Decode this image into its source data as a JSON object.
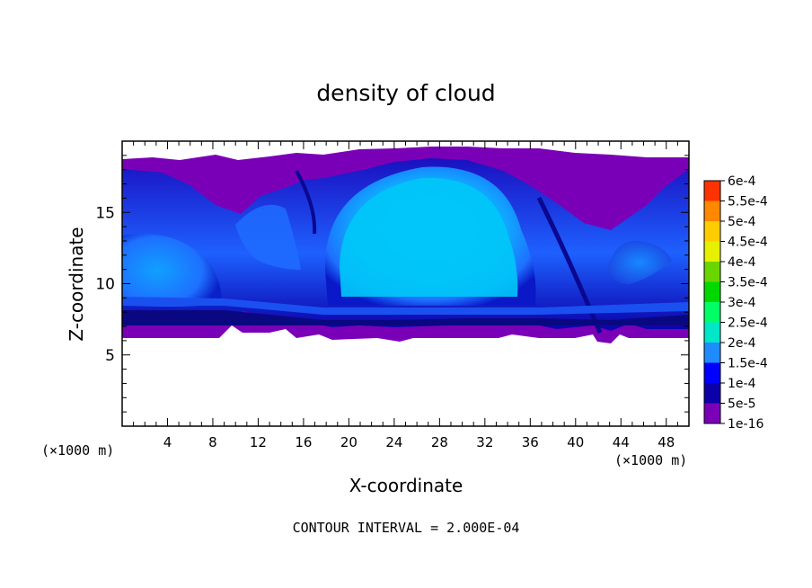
{
  "chart_data": {
    "type": "heatmap",
    "title": "density of cloud",
    "xlabel": "X-coordinate",
    "ylabel": "Z-coordinate",
    "x_unit_left": "(×1000 m)",
    "x_unit_right": "(×1000 m)",
    "footer": "CONTOUR INTERVAL = 2.000E-04",
    "xlim": [
      0,
      50
    ],
    "ylim": [
      0,
      20
    ],
    "x_ticks": [
      "4",
      "8",
      "12",
      "16",
      "20",
      "24",
      "28",
      "32",
      "36",
      "40",
      "44",
      "48"
    ],
    "y_ticks": [
      "5",
      "10",
      "15"
    ],
    "colorbar": {
      "levels": [
        "1e-16",
        "5e-5",
        "1e-4",
        "1.5e-4",
        "2e-4",
        "2.5e-4",
        "3e-4",
        "3.5e-4",
        "4e-4",
        "4.5e-4",
        "5e-4",
        "5.5e-4",
        "6e-4"
      ],
      "colors": [
        "#7a00b8",
        "#0c00a8",
        "#0000ff",
        "#1e8cff",
        "#00e6c8",
        "#00ff66",
        "#00d800",
        "#6ad600",
        "#e6f000",
        "#ffcc00",
        "#ff8800",
        "#ff3300",
        "#ff8080"
      ]
    },
    "cloud_layer": {
      "base_z": 6.2,
      "top_z": 19.0,
      "peak_x": 27,
      "peak_level": "1.5e-4"
    }
  }
}
